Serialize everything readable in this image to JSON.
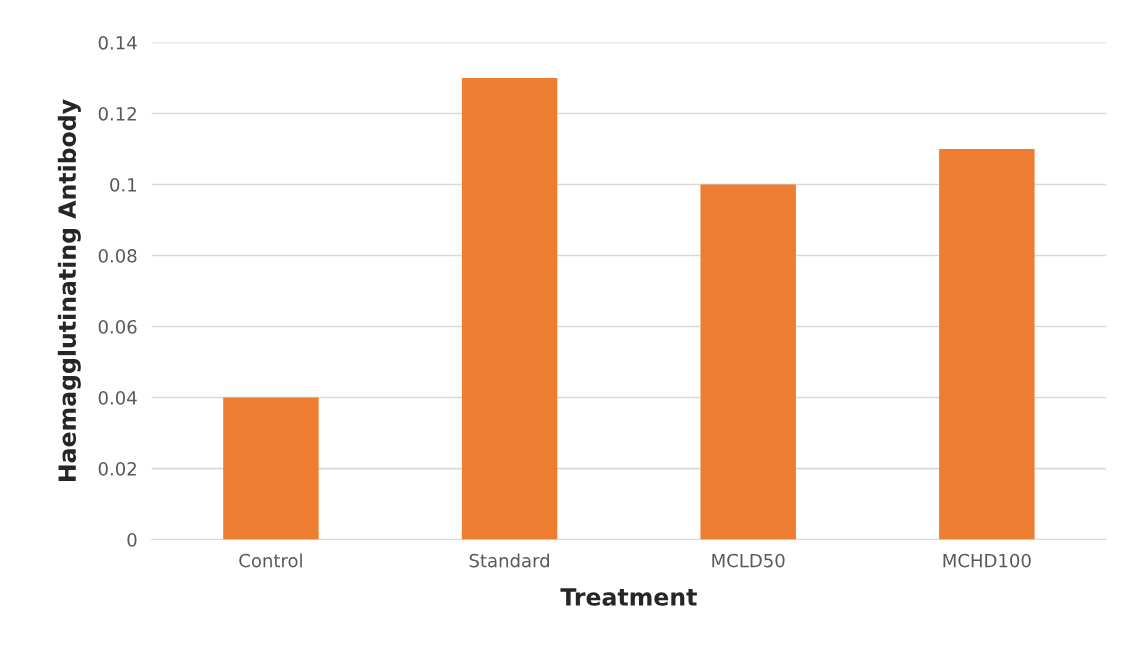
{
  "chart_data": {
    "type": "bar",
    "xlabel": "Treatment",
    "ylabel": "Haemagglutinating Antibody",
    "categories": [
      "Control",
      "Standard",
      "MCLD50",
      "MCHD100"
    ],
    "values": [
      0.04,
      0.13,
      0.1,
      0.11
    ],
    "color": "#ed7d31",
    "ylim": [
      0,
      0.14
    ],
    "yticks": [
      0,
      0.02,
      0.04,
      0.06,
      0.08,
      0.1,
      0.12,
      0.14
    ],
    "grid": "y",
    "legend": false
  }
}
